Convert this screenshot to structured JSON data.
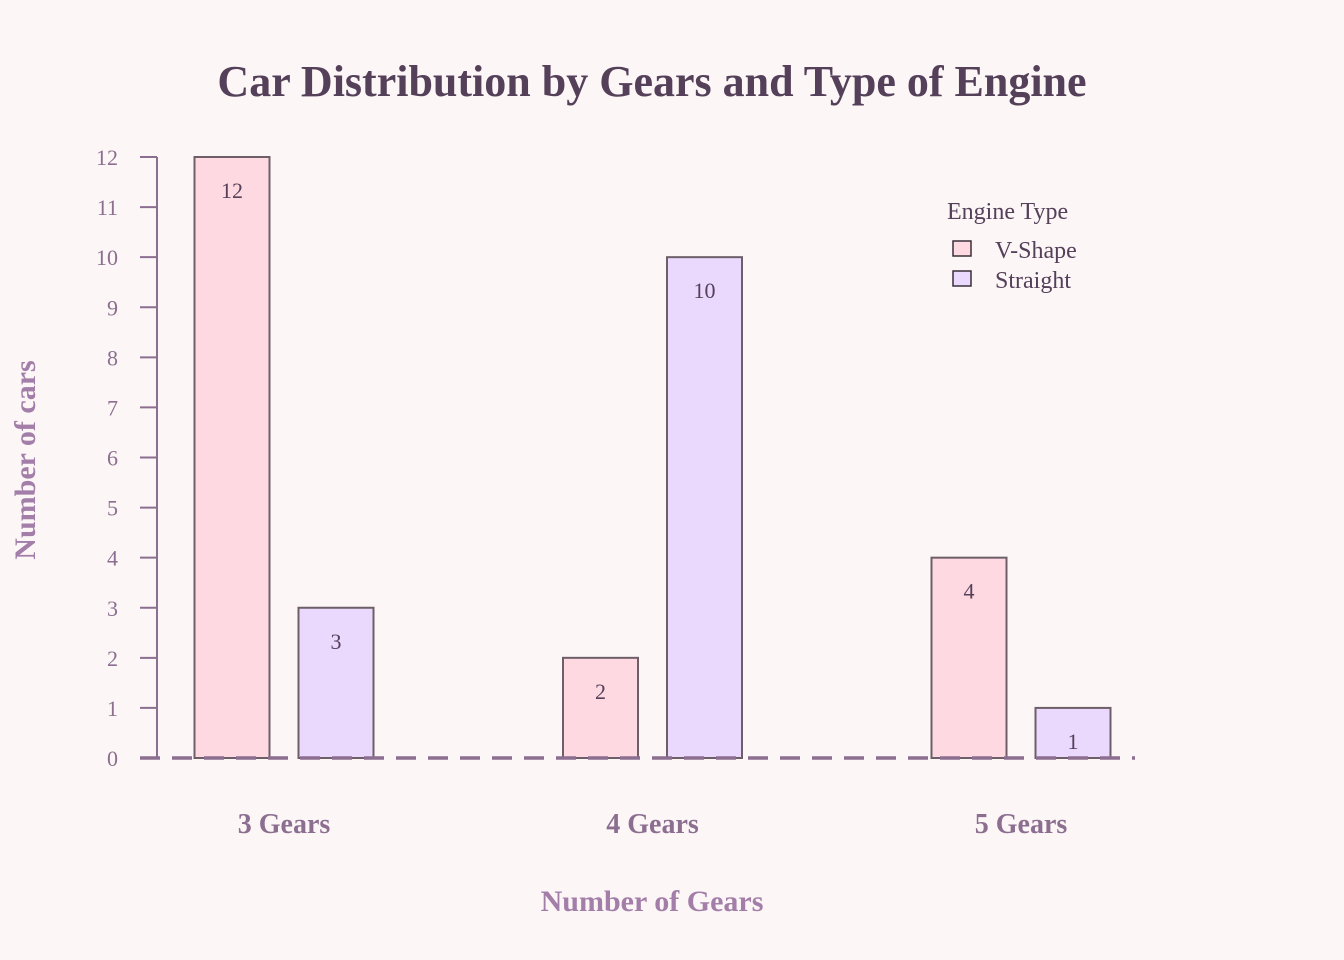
{
  "chart_data": {
    "type": "bar",
    "title": "Car Distribution by Gears and Type of Engine",
    "xlabel": "Number of Gears",
    "ylabel": "Number of cars",
    "categories": [
      "3 Gears",
      "4 Gears",
      "5 Gears"
    ],
    "series": [
      {
        "name": "V-Shape",
        "values": [
          12,
          2,
          4
        ],
        "color": "#ffd9e1"
      },
      {
        "name": "Straight",
        "values": [
          3,
          10,
          1
        ],
        "color": "#ebd9fd"
      }
    ],
    "ylim": [
      0,
      12
    ],
    "yticks": [
      0,
      1,
      2,
      3,
      4,
      5,
      6,
      7,
      8,
      9,
      10,
      11,
      12
    ],
    "legend": {
      "title": "Engine Type",
      "position": "top-right"
    },
    "grid": false,
    "colors": {
      "background": "#fcf6f6",
      "bar_edge": "#6d5e68",
      "axis": "#8c6f90",
      "baseline": "#8c6f90"
    }
  }
}
